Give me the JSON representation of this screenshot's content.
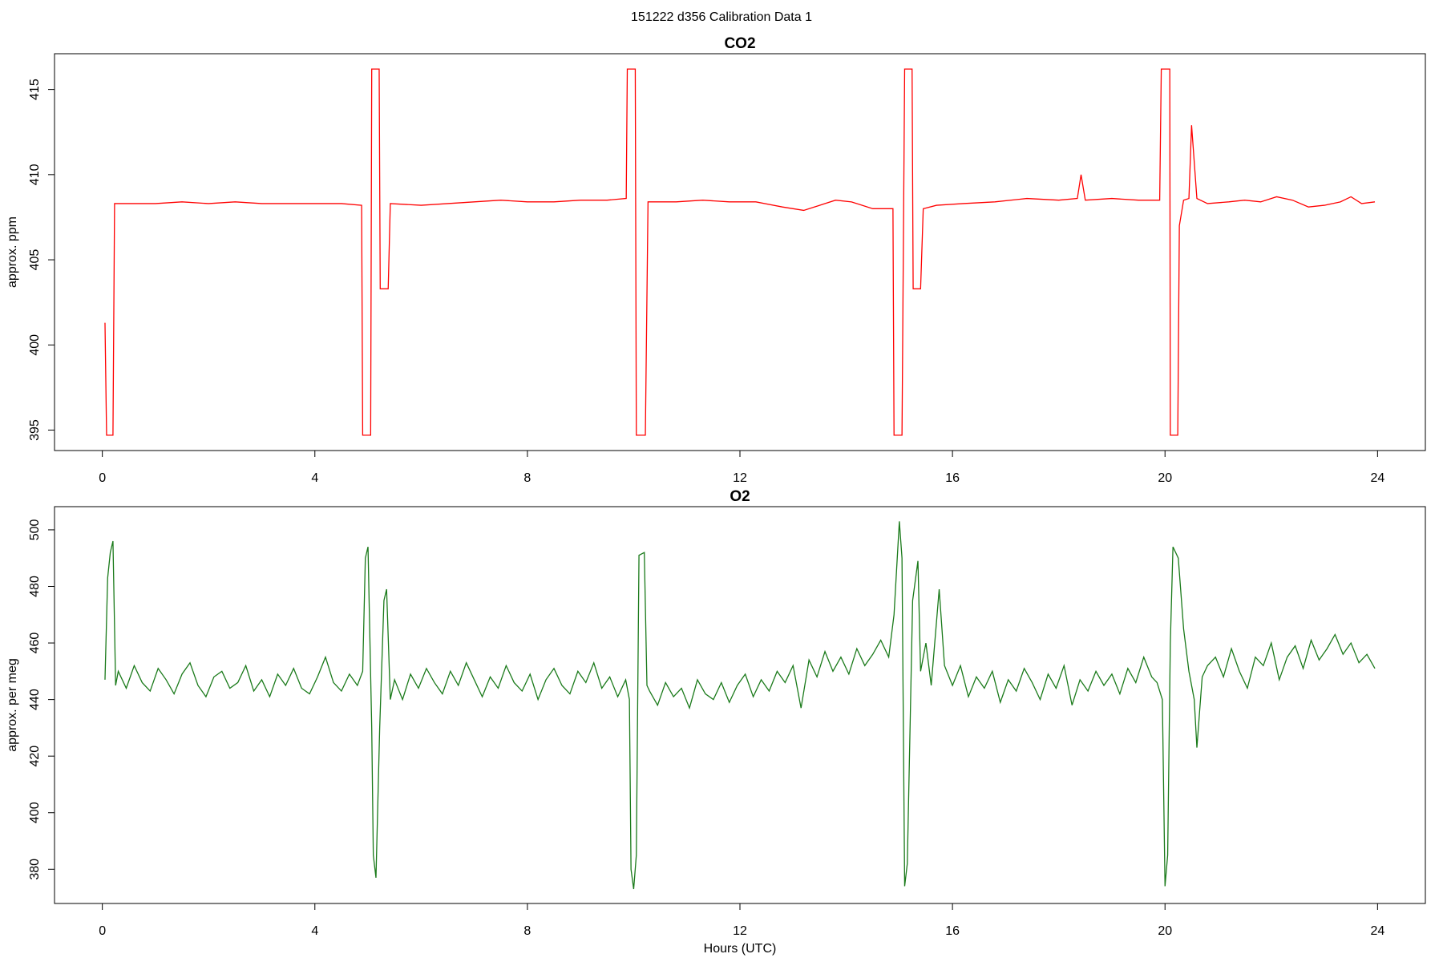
{
  "title": "151222   d356   Calibration Data 1",
  "chart_data": [
    {
      "type": "line",
      "title": "CO2",
      "ylabel": "approx. ppm",
      "color": "#ff0000",
      "xlim": [
        -0.9,
        24.9
      ],
      "xticks": [
        0,
        4,
        8,
        12,
        16,
        20,
        24
      ],
      "ylim": [
        393.8,
        417.1
      ],
      "yticks": [
        395,
        400,
        405,
        410,
        415
      ],
      "x": [
        0.05,
        0.08,
        0.2,
        0.23,
        0.5,
        1.0,
        1.5,
        2.0,
        2.5,
        3.0,
        3.5,
        4.0,
        4.5,
        4.88,
        4.9,
        5.05,
        5.07,
        5.21,
        5.23,
        5.38,
        5.42,
        6.0,
        6.5,
        7.0,
        7.5,
        8.0,
        8.5,
        9.0,
        9.5,
        9.86,
        9.88,
        10.03,
        10.05,
        10.22,
        10.27,
        10.8,
        11.3,
        11.8,
        12.3,
        12.8,
        13.2,
        13.5,
        13.8,
        14.1,
        14.5,
        14.88,
        14.9,
        15.05,
        15.1,
        15.24,
        15.26,
        15.4,
        15.45,
        15.7,
        16.2,
        16.8,
        17.4,
        18.0,
        18.35,
        18.42,
        18.5,
        19.0,
        19.5,
        19.9,
        19.93,
        20.09,
        20.1,
        20.24,
        20.27,
        20.35,
        20.45,
        20.5,
        20.6,
        20.8,
        21.2,
        21.5,
        21.8,
        22.1,
        22.4,
        22.7,
        23.0,
        23.3,
        23.5,
        23.7,
        23.95
      ],
      "values": [
        401.3,
        394.7,
        394.7,
        408.3,
        408.3,
        408.3,
        408.4,
        408.3,
        408.4,
        408.3,
        408.3,
        408.3,
        408.3,
        408.2,
        394.7,
        394.7,
        416.2,
        416.2,
        403.3,
        403.3,
        408.3,
        408.2,
        408.3,
        408.4,
        408.5,
        408.4,
        408.4,
        408.5,
        408.5,
        408.6,
        416.2,
        416.2,
        394.7,
        394.7,
        408.4,
        408.4,
        408.5,
        408.4,
        408.4,
        408.1,
        407.9,
        408.2,
        408.5,
        408.4,
        408.0,
        408.0,
        394.7,
        394.7,
        416.2,
        416.2,
        403.3,
        403.3,
        408.0,
        408.2,
        408.3,
        408.4,
        408.6,
        408.5,
        408.6,
        410.0,
        408.5,
        408.6,
        408.5,
        408.5,
        416.2,
        416.2,
        394.7,
        394.7,
        407.0,
        408.5,
        408.6,
        412.9,
        408.6,
        408.3,
        408.4,
        408.5,
        408.4,
        408.7,
        408.5,
        408.1,
        408.2,
        408.4,
        408.7,
        408.3,
        408.4
      ]
    },
    {
      "type": "line",
      "title": "O2",
      "ylabel": "approx. per meg",
      "xlabel": "Hours (UTC)",
      "color": "#1a7a1a",
      "xlim": [
        -0.9,
        24.9
      ],
      "xticks": [
        0,
        4,
        8,
        12,
        16,
        20,
        24
      ],
      "ylim": [
        367.9,
        508.2
      ],
      "yticks": [
        380,
        400,
        420,
        440,
        460,
        480,
        500
      ],
      "x": [
        0.05,
        0.1,
        0.15,
        0.2,
        0.25,
        0.3,
        0.45,
        0.6,
        0.75,
        0.9,
        1.05,
        1.2,
        1.35,
        1.5,
        1.65,
        1.8,
        1.95,
        2.1,
        2.25,
        2.4,
        2.55,
        2.7,
        2.85,
        3.0,
        3.15,
        3.3,
        3.45,
        3.6,
        3.75,
        3.9,
        4.05,
        4.2,
        4.35,
        4.5,
        4.65,
        4.8,
        4.9,
        4.95,
        5.0,
        5.07,
        5.1,
        5.15,
        5.22,
        5.3,
        5.35,
        5.42,
        5.5,
        5.65,
        5.8,
        5.95,
        6.1,
        6.25,
        6.4,
        6.55,
        6.7,
        6.85,
        7.0,
        7.15,
        7.3,
        7.45,
        7.6,
        7.75,
        7.9,
        8.05,
        8.2,
        8.35,
        8.5,
        8.65,
        8.8,
        8.95,
        9.1,
        9.25,
        9.4,
        9.55,
        9.7,
        9.85,
        9.92,
        9.95,
        10.0,
        10.05,
        10.1,
        10.2,
        10.25,
        10.3,
        10.45,
        10.6,
        10.75,
        10.9,
        11.05,
        11.2,
        11.35,
        11.5,
        11.65,
        11.8,
        11.95,
        12.1,
        12.25,
        12.4,
        12.55,
        12.7,
        12.85,
        13.0,
        13.15,
        13.3,
        13.45,
        13.6,
        13.75,
        13.9,
        14.05,
        14.2,
        14.35,
        14.5,
        14.65,
        14.8,
        14.9,
        15.0,
        15.05,
        15.1,
        15.15,
        15.25,
        15.35,
        15.4,
        15.5,
        15.6,
        15.75,
        15.85,
        16.0,
        16.15,
        16.3,
        16.45,
        16.6,
        16.75,
        16.9,
        17.05,
        17.2,
        17.35,
        17.5,
        17.65,
        17.8,
        17.95,
        18.1,
        18.25,
        18.4,
        18.55,
        18.7,
        18.85,
        19.0,
        19.15,
        19.3,
        19.45,
        19.6,
        19.75,
        19.85,
        19.95,
        20.0,
        20.05,
        20.1,
        20.15,
        20.25,
        20.35,
        20.45,
        20.55,
        20.6,
        20.7,
        20.8,
        20.95,
        21.1,
        21.25,
        21.4,
        21.55,
        21.7,
        21.85,
        22.0,
        22.15,
        22.3,
        22.45,
        22.6,
        22.75,
        22.9,
        23.05,
        23.2,
        23.35,
        23.5,
        23.65,
        23.8,
        23.95
      ],
      "values": [
        447,
        483,
        492,
        496,
        445,
        450,
        444,
        452,
        446,
        443,
        451,
        447,
        442,
        449,
        453,
        445,
        441,
        448,
        450,
        444,
        446,
        452,
        443,
        447,
        441,
        449,
        445,
        451,
        444,
        442,
        448,
        455,
        446,
        443,
        449,
        445,
        450,
        490,
        494,
        430,
        385,
        377,
        430,
        475,
        479,
        440,
        447,
        440,
        449,
        444,
        451,
        446,
        442,
        450,
        445,
        453,
        447,
        441,
        448,
        444,
        452,
        446,
        443,
        449,
        440,
        447,
        451,
        445,
        442,
        450,
        446,
        453,
        444,
        448,
        441,
        447,
        440,
        380,
        373,
        385,
        491,
        492,
        445,
        443,
        438,
        446,
        441,
        444,
        437,
        447,
        442,
        440,
        446,
        439,
        445,
        449,
        441,
        447,
        443,
        450,
        446,
        452,
        437,
        454,
        448,
        457,
        450,
        455,
        449,
        458,
        452,
        456,
        461,
        455,
        470,
        503,
        490,
        374,
        382,
        475,
        489,
        450,
        460,
        445,
        479,
        452,
        445,
        452,
        441,
        448,
        444,
        450,
        439,
        447,
        443,
        451,
        446,
        440,
        449,
        444,
        452,
        438,
        447,
        443,
        450,
        445,
        449,
        442,
        451,
        446,
        455,
        448,
        446,
        440,
        374,
        385,
        460,
        494,
        490,
        465,
        450,
        440,
        423,
        448,
        452,
        455,
        448,
        458,
        450,
        444,
        455,
        452,
        460,
        447,
        455,
        459,
        451,
        461,
        454,
        458,
        463,
        456,
        460,
        453,
        456,
        451
      ]
    }
  ]
}
